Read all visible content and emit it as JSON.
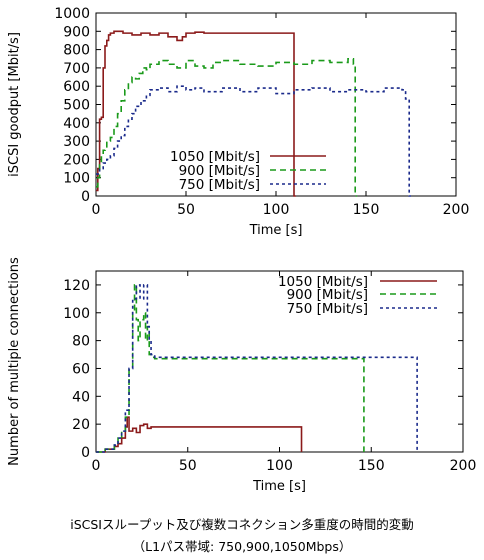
{
  "charts": [
    {
      "type": "line",
      "xlabel": "Time [s]",
      "ylabel": "iSCSI goodput [Mbit/s]",
      "xlim": [
        0,
        200
      ],
      "ylim": [
        0,
        1000
      ],
      "xticks": [
        0,
        50,
        100,
        150,
        200
      ],
      "yticks": [
        0,
        100,
        200,
        300,
        400,
        500,
        600,
        700,
        800,
        900,
        1000
      ],
      "legend_position": "lower-right",
      "series": [
        {
          "name": "1050 [Mbit/s]",
          "color": "#8b1a1a",
          "dash": "solid",
          "x": [
            0,
            1,
            2,
            3,
            4,
            5,
            6,
            7,
            8,
            10,
            15,
            20,
            25,
            30,
            35,
            40,
            45,
            48,
            50,
            55,
            60,
            70,
            80,
            90,
            100,
            109,
            110,
            111
          ],
          "y": [
            30,
            150,
            420,
            430,
            700,
            820,
            850,
            880,
            890,
            900,
            890,
            880,
            890,
            880,
            890,
            870,
            850,
            870,
            890,
            895,
            890,
            890,
            890,
            890,
            890,
            890,
            0,
            0
          ]
        },
        {
          "name": "900 [Mbit/s]",
          "color": "#1a9a1a",
          "dash": "6,4",
          "x": [
            0,
            1,
            2,
            3,
            4,
            5,
            6,
            8,
            10,
            12,
            14,
            16,
            18,
            20,
            22,
            24,
            26,
            28,
            30,
            35,
            40,
            45,
            50,
            55,
            60,
            65,
            70,
            80,
            90,
            100,
            110,
            120,
            130,
            140,
            143,
            144,
            145
          ],
          "y": [
            50,
            100,
            170,
            220,
            250,
            260,
            300,
            320,
            380,
            450,
            520,
            580,
            620,
            650,
            640,
            670,
            700,
            690,
            720,
            740,
            720,
            700,
            740,
            710,
            700,
            730,
            740,
            720,
            710,
            730,
            720,
            740,
            730,
            750,
            720,
            0,
            0
          ]
        },
        {
          "name": "750 [Mbit/s]",
          "color": "#1a2a8b",
          "dash": "3,3",
          "x": [
            0,
            2,
            4,
            6,
            8,
            10,
            12,
            14,
            16,
            18,
            20,
            22,
            25,
            28,
            30,
            35,
            40,
            45,
            50,
            55,
            60,
            70,
            80,
            90,
            100,
            110,
            120,
            130,
            140,
            150,
            160,
            170,
            172,
            174,
            175
          ],
          "y": [
            120,
            150,
            180,
            200,
            220,
            260,
            300,
            330,
            380,
            420,
            450,
            490,
            520,
            550,
            580,
            590,
            570,
            600,
            580,
            590,
            570,
            590,
            570,
            590,
            560,
            580,
            590,
            570,
            580,
            570,
            590,
            580,
            530,
            0,
            0
          ]
        }
      ]
    },
    {
      "type": "line",
      "xlabel": "Time [s]",
      "ylabel": "Number of multiple connections",
      "xlim": [
        0,
        200
      ],
      "ylim": [
        0,
        130
      ],
      "xticks": [
        0,
        50,
        100,
        150,
        200
      ],
      "yticks": [
        0,
        20,
        40,
        60,
        80,
        100,
        120
      ],
      "legend_position": "top-right",
      "series": [
        {
          "name": "1050 [Mbit/s]",
          "color": "#8b1a1a",
          "dash": "solid",
          "x": [
            0,
            5,
            10,
            12,
            14,
            16,
            17,
            18,
            20,
            22,
            24,
            26,
            28,
            30,
            35,
            50,
            80,
            111,
            112
          ],
          "y": [
            0,
            2,
            4,
            6,
            10,
            18,
            25,
            15,
            17,
            14,
            19,
            20,
            17,
            18,
            18,
            18,
            18,
            18,
            0
          ]
        },
        {
          "name": "900 [Mbit/s]",
          "color": "#1a9a1a",
          "dash": "6,4",
          "x": [
            0,
            5,
            10,
            12,
            14,
            16,
            18,
            20,
            21,
            22,
            23,
            24,
            26,
            27,
            28,
            29,
            30,
            32,
            35,
            50,
            80,
            100,
            120,
            145,
            146
          ],
          "y": [
            0,
            2,
            5,
            10,
            15,
            25,
            60,
            100,
            120,
            95,
            80,
            95,
            100,
            80,
            90,
            70,
            68,
            67,
            67,
            67,
            67,
            67,
            67,
            67,
            0
          ]
        },
        {
          "name": "750 [Mbit/s]",
          "color": "#1a2a8b",
          "dash": "3,3",
          "x": [
            0,
            5,
            10,
            12,
            14,
            16,
            18,
            20,
            22,
            24,
            26,
            28,
            29,
            30,
            32,
            35,
            50,
            80,
            100,
            120,
            150,
            174,
            175
          ],
          "y": [
            0,
            2,
            5,
            10,
            15,
            30,
            60,
            110,
            120,
            110,
            120,
            90,
            80,
            70,
            68,
            68,
            68,
            68,
            68,
            68,
            68,
            68,
            0
          ]
        }
      ]
    }
  ],
  "caption": {
    "line1": "iSCSIスループット及び複数コネクション多重度の時間的変動",
    "line2": "（L1パス帯域: 750,900,1050Mbps）"
  }
}
